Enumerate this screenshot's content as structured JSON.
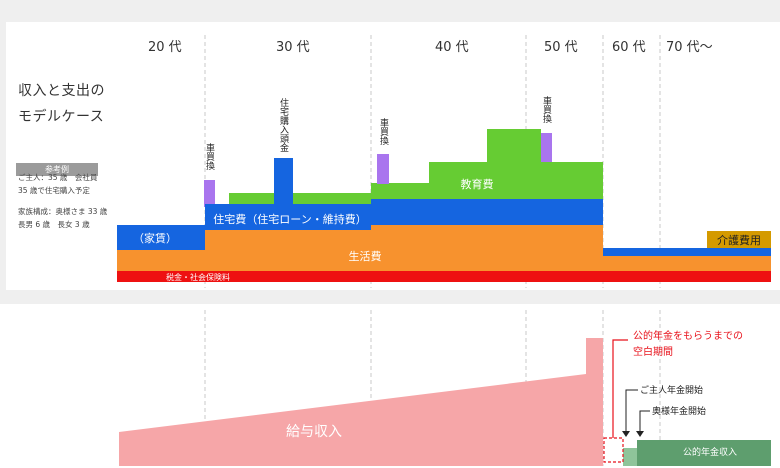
{
  "side": {
    "title_line1": "収入と支出の",
    "title_line2": "モデルケース",
    "badge": "参考例",
    "note1": "ご主人：35 歳　会社員",
    "note2": "35 歳で住宅購入予定",
    "note3": "家族構成：奥様さま 33 歳",
    "note4": "長男 6 歳　長女 3 歳"
  },
  "decades": [
    "20 代",
    "30 代",
    "40 代",
    "50 代",
    "60 代",
    "70 代〜"
  ],
  "expense_labels": {
    "rent": "（家賃）",
    "housing": "住宅費（住宅ローン・維持費）",
    "education": "教育費",
    "living": "生活費",
    "care": "介護費用",
    "tax": "税金・社会保険料",
    "car1": "車買換",
    "car2": "車買換",
    "car3": "車買換",
    "down_payment": "住宅購入頭金"
  },
  "income_labels": {
    "salary": "給与収入",
    "gap_line1": "公的年金をもらうまでの",
    "gap_line2": "空白期間",
    "husband_pension": "ご主人年金開始",
    "wife_pension": "奥様年金開始",
    "public_pension": "公的年金収入"
  },
  "colors": {
    "tax": "#ee1111",
    "living": "#f7922e",
    "housing": "#1565e0",
    "education": "#66cc33",
    "car": "#a975ee",
    "care": "#d49a00",
    "salary": "#f6a6a8",
    "pension": "#5e9e6e",
    "gap": "#e8121b"
  }
}
